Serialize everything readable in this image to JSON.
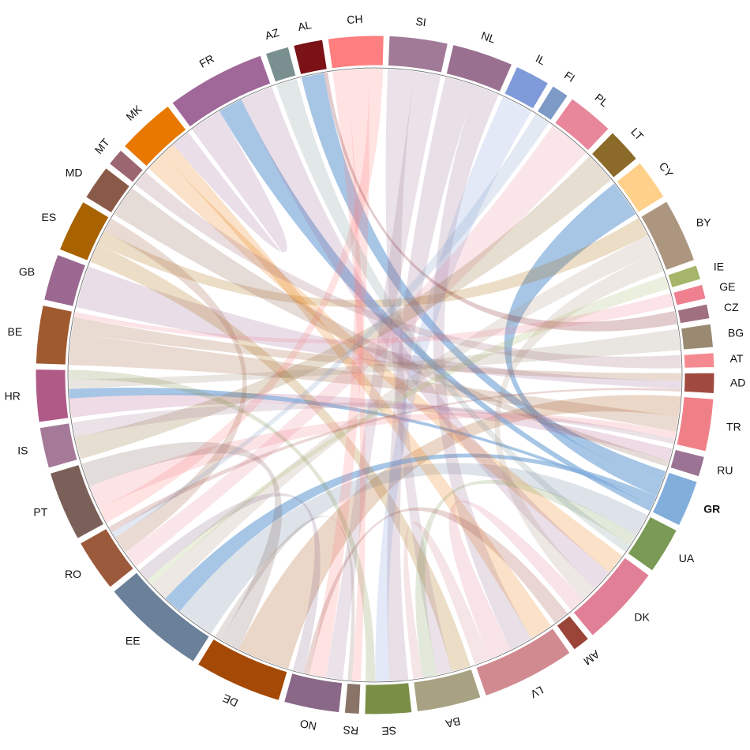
{
  "chart_data": {
    "type": "chord",
    "categories": [
      "CH",
      "SI",
      "NL",
      "IL",
      "FI",
      "PL",
      "LT",
      "CY",
      "BY",
      "IE",
      "GE",
      "CZ",
      "BG",
      "AT",
      "AD",
      "TR",
      "RU",
      "GR",
      "UA",
      "DK",
      "AM",
      "LV",
      "BA",
      "SE",
      "RS",
      "NO",
      "DE",
      "EE",
      "RO",
      "PT",
      "IS",
      "HR",
      "BE",
      "GB",
      "ES",
      "MD",
      "MT",
      "MK",
      "FR",
      "AZ",
      "AL"
    ],
    "values": [
      9.5,
      10,
      10.5,
      6,
      3,
      8,
      6,
      7,
      11,
      2.5,
      2.5,
      2.5,
      4,
      2.5,
      3.5,
      9,
      3.5,
      8,
      8,
      14,
      3,
      16,
      11,
      8,
      2.5,
      9.5,
      15,
      18,
      9,
      12,
      7,
      9,
      10,
      8,
      9,
      6,
      3,
      10,
      17,
      4,
      5
    ],
    "colors": [
      "#ff7f80",
      "#a07a96",
      "#9a7090",
      "#7f9ad8",
      "#7d9ac6",
      "#e8879c",
      "#8c6a2a",
      "#ffd08a",
      "#ad9680",
      "#a5b56a",
      "#ef8090",
      "#a07080",
      "#9a8a72",
      "#f48a90",
      "#a04a3f",
      "#f08088",
      "#9b7394",
      "#82aedb",
      "#7a9a55",
      "#e07f95",
      "#9a4538",
      "#d08a90",
      "#a8a282",
      "#7a8f45",
      "#8a7468",
      "#8a6888",
      "#a44a06",
      "#6b8099",
      "#9c5a3c",
      "#7a6058",
      "#a57a98",
      "#b05a88",
      "#a05a30",
      "#9a6890",
      "#a86200",
      "#8a5a48",
      "#9c6670",
      "#e87800",
      "#a06898",
      "#7a9090",
      "#7a1218"
    ],
    "highlight": "GR",
    "links": [
      {
        "source": "GR",
        "target": "AL",
        "value": 6
      },
      {
        "source": "GR",
        "target": "CY",
        "value": 7
      },
      {
        "source": "DE",
        "target": "TR",
        "value": 8
      },
      {
        "source": "EE",
        "target": "UA",
        "value": 6
      },
      {
        "source": "EE",
        "target": "GR",
        "value": 3
      },
      {
        "source": "BE",
        "target": "TR",
        "value": 6
      },
      {
        "source": "BE",
        "target": "AD",
        "value": 3
      },
      {
        "source": "GB",
        "target": "AD",
        "value": 3
      },
      {
        "source": "HR",
        "target": "RU",
        "value": 4
      },
      {
        "source": "HR",
        "target": "GR",
        "value": 2
      },
      {
        "source": "ES",
        "target": "BA",
        "value": 4
      },
      {
        "source": "ES",
        "target": "BY",
        "value": 3
      },
      {
        "source": "MK",
        "target": "DK",
        "value": 4
      },
      {
        "source": "MK",
        "target": "LV",
        "value": 3
      },
      {
        "source": "FR",
        "target": "MK",
        "value": 4
      },
      {
        "source": "FR",
        "target": "GR",
        "value": 3
      },
      {
        "source": "FR",
        "target": "DK",
        "value": 4
      },
      {
        "source": "SI",
        "target": "BA",
        "value": 3
      },
      {
        "source": "SI",
        "target": "NO",
        "value": 3
      },
      {
        "source": "NL",
        "target": "SE",
        "value": 4
      },
      {
        "source": "NL",
        "target": "LV",
        "value": 3
      },
      {
        "source": "CH",
        "target": "RS",
        "value": 2
      },
      {
        "source": "CH",
        "target": "NO",
        "value": 3
      },
      {
        "source": "CH",
        "target": "PT",
        "value": 2
      },
      {
        "source": "IL",
        "target": "SE",
        "value": 3
      },
      {
        "source": "PL",
        "target": "RO",
        "value": 3
      },
      {
        "source": "LT",
        "target": "IS",
        "value": 3
      },
      {
        "source": "BY",
        "target": "EE",
        "value": 3
      },
      {
        "source": "BY",
        "target": "DK",
        "value": 3
      },
      {
        "source": "TR",
        "target": "PT",
        "value": 3
      },
      {
        "source": "UA",
        "target": "BA",
        "value": 3
      },
      {
        "source": "DK",
        "target": "LV",
        "value": 3
      },
      {
        "source": "LV",
        "target": "BA",
        "value": 2
      },
      {
        "source": "RO",
        "target": "ES",
        "value": 3
      },
      {
        "source": "PT",
        "target": "DE",
        "value": 3
      },
      {
        "source": "IS",
        "target": "TR",
        "value": 2
      },
      {
        "source": "MD",
        "target": "RU",
        "value": 2
      },
      {
        "source": "MT",
        "target": "AT",
        "value": 1
      },
      {
        "source": "AZ",
        "target": "UA",
        "value": 2
      },
      {
        "source": "AL",
        "target": "CZ",
        "value": 1
      },
      {
        "source": "IE",
        "target": "EE",
        "value": 1
      },
      {
        "source": "GE",
        "target": "BE",
        "value": 1
      },
      {
        "source": "BG",
        "target": "HR",
        "value": 2
      },
      {
        "source": "AM",
        "target": "NO",
        "value": 1
      },
      {
        "source": "FI",
        "target": "RO",
        "value": 1
      },
      {
        "source": "AD",
        "target": "RO",
        "value": 1
      },
      {
        "source": "RS",
        "target": "DE",
        "value": 1
      },
      {
        "source": "NO",
        "target": "EE",
        "value": 2
      },
      {
        "source": "SE",
        "target": "HR",
        "value": 2
      }
    ]
  }
}
